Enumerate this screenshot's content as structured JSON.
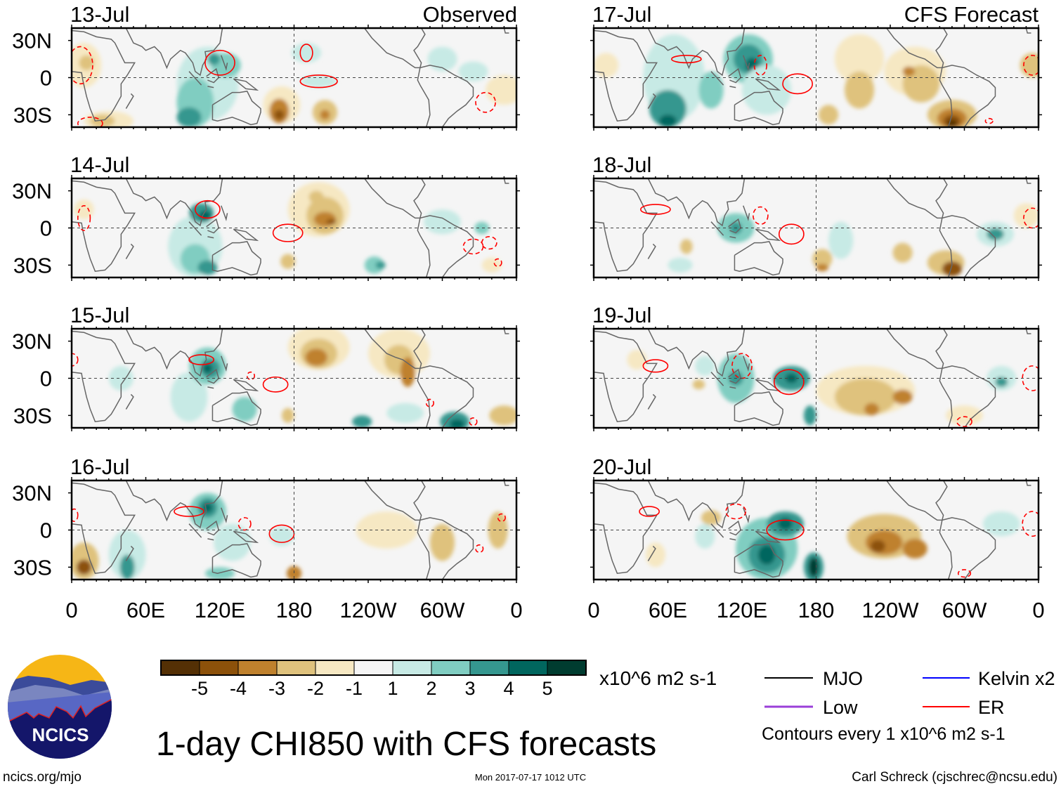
{
  "header": {
    "left_label": "Observed",
    "right_label": "CFS Forecast"
  },
  "panels": [
    {
      "date": "13-Jul"
    },
    {
      "date": "14-Jul"
    },
    {
      "date": "15-Jul"
    },
    {
      "date": "16-Jul"
    },
    {
      "date": "17-Jul"
    },
    {
      "date": "18-Jul"
    },
    {
      "date": "19-Jul"
    },
    {
      "date": "20-Jul"
    }
  ],
  "lat_labels": [
    "30N",
    "0",
    "30S"
  ],
  "lon_labels": [
    "0",
    "60E",
    "120E",
    "180",
    "120W",
    "60W",
    "0"
  ],
  "colorbar": {
    "ticks": [
      "-5",
      "-4",
      "-3",
      "-2",
      "-1",
      "1",
      "2",
      "3",
      "4",
      "5"
    ],
    "colors": [
      "#543005",
      "#8c510a",
      "#bf812d",
      "#dfc27d",
      "#f6e8c3",
      "#f5f5f5",
      "#c7eae5",
      "#80cdc1",
      "#35978f",
      "#01665e",
      "#003c30"
    ],
    "units": "x10^6 m2 s-1"
  },
  "legend": {
    "items": [
      {
        "label": "MJO",
        "color": "#000000"
      },
      {
        "label": "Kelvin x2",
        "color": "#0000ff"
      },
      {
        "label": "Low",
        "color": "#9a3fd8"
      },
      {
        "label": "ER",
        "color": "#ff0000"
      }
    ],
    "note": "Contours every 1 x10^6 m2 s-1"
  },
  "title": "1-day CHI850 with CFS forecasts",
  "footer": {
    "site": "ncics.org/mjo",
    "timestamp": "Mon 2017-07-17 1012 UTC",
    "credit": "Carl Schreck (cjschrec@ncsu.edu)",
    "logo_text": "NCICS"
  },
  "chart_data": {
    "type": "heatmap",
    "title": "1-day CHI850 with CFS forecasts",
    "variable": "CHI850 anomaly",
    "units": "x10^6 m2 s-1",
    "levels": [
      -5,
      -4,
      -3,
      -2,
      -1,
      1,
      2,
      3,
      4,
      5
    ],
    "xlim": [
      0,
      360
    ],
    "ylim": [
      -40,
      40
    ],
    "xticks": [
      "0",
      "60E",
      "120E",
      "180",
      "120W",
      "60W",
      "0"
    ],
    "yticks": [
      "30N",
      "0",
      "30S"
    ],
    "observed_dates": [
      "13-Jul",
      "14-Jul",
      "15-Jul",
      "16-Jul"
    ],
    "forecast_dates": [
      "17-Jul",
      "18-Jul",
      "19-Jul",
      "20-Jul"
    ]
  }
}
